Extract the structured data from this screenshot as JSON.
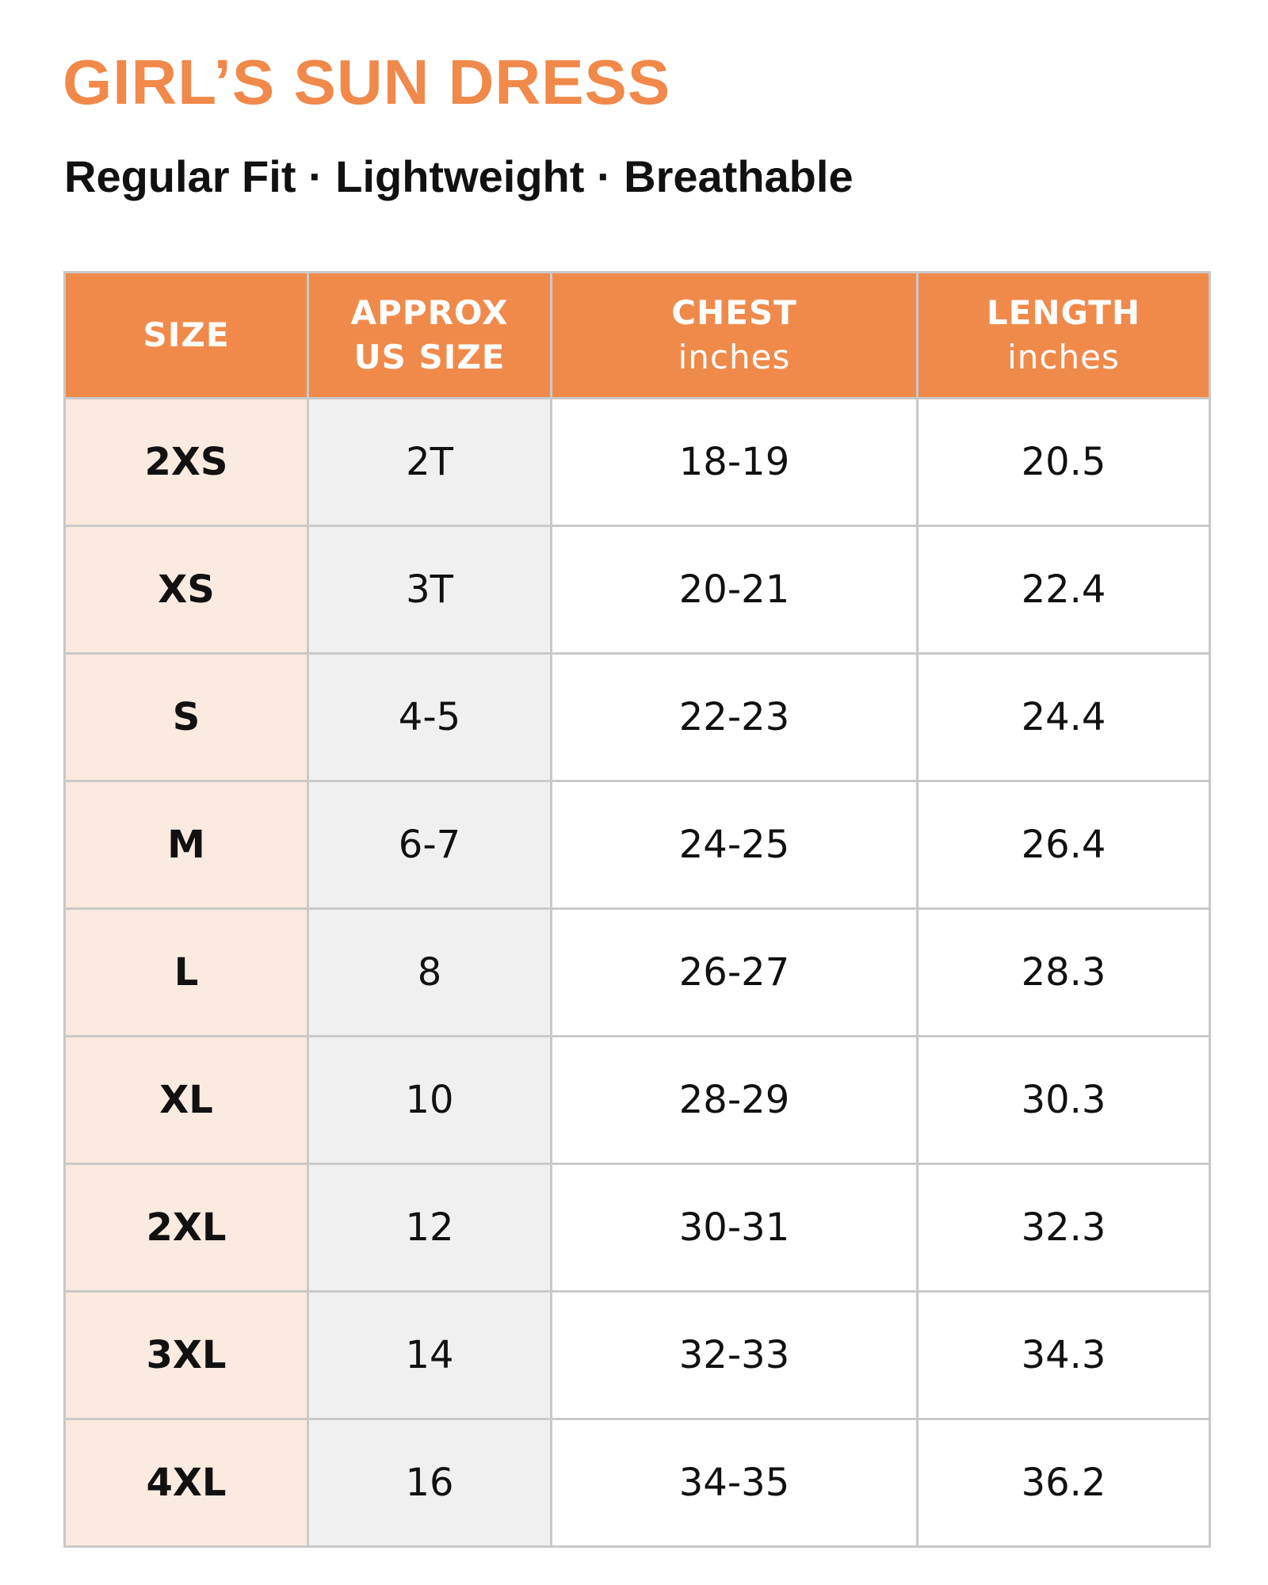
{
  "header": {
    "title": "GIRL’S SUN DRESS",
    "subtitle": "Regular Fit · Lightweight · Breathable"
  },
  "table": {
    "columns": [
      {
        "title": "SIZE"
      },
      {
        "title": "APPROX US SIZE"
      },
      {
        "title": "CHEST",
        "unit": "inches"
      },
      {
        "title": "LENGTH",
        "unit": "inches"
      }
    ],
    "rows": [
      [
        "2XS",
        "2T",
        "18-19",
        "20.5"
      ],
      [
        "XS",
        "3T",
        "20-21",
        "22.4"
      ],
      [
        "S",
        "4-5",
        "22-23",
        "24.4"
      ],
      [
        "M",
        "6-7",
        "24-25",
        "26.4"
      ],
      [
        "L",
        "8",
        "26-27",
        "28.3"
      ],
      [
        "XL",
        "10",
        "28-29",
        "30.3"
      ],
      [
        "2XL",
        "12",
        "30-31",
        "32.3"
      ],
      [
        "3XL",
        "14",
        "32-33",
        "34.3"
      ],
      [
        "4XL",
        "16",
        "34-35",
        "36.2"
      ]
    ]
  }
}
